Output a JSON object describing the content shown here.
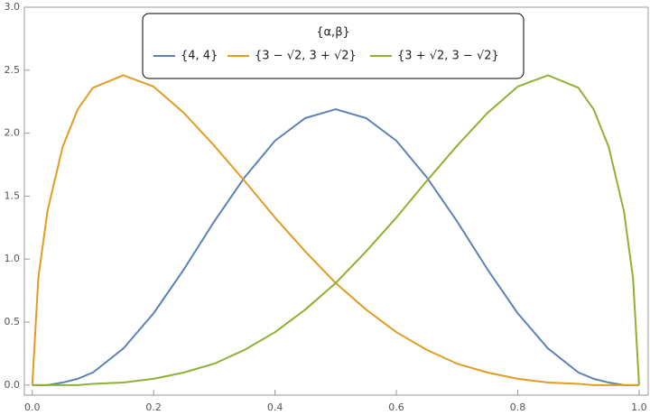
{
  "chart_data": {
    "type": "line",
    "legend_title": "{α,β}",
    "x": [
      0,
      0.01,
      0.025,
      0.05,
      0.075,
      0.1,
      0.15,
      0.2,
      0.25,
      0.3,
      0.35,
      0.4,
      0.45,
      0.5,
      0.55,
      0.6,
      0.65,
      0.7,
      0.75,
      0.8,
      0.85,
      0.9,
      0.925,
      0.95,
      0.975,
      0.99,
      1
    ],
    "series": [
      {
        "name": "{4, 4}",
        "color": "#5e81b5",
        "values": [
          0,
          0,
          0,
          0.02,
          0.05,
          0.1,
          0.29,
          0.57,
          0.92,
          1.3,
          1.65,
          1.94,
          2.12,
          2.19,
          2.12,
          1.94,
          1.65,
          1.3,
          0.92,
          0.57,
          0.29,
          0.1,
          0.05,
          0.02,
          0,
          0,
          0
        ]
      },
      {
        "name": "{3 − √2, 3 + √2}",
        "color": "#e19c24",
        "values": [
          0,
          0.85,
          1.38,
          1.89,
          2.19,
          2.36,
          2.46,
          2.37,
          2.16,
          1.9,
          1.62,
          1.33,
          1.06,
          0.81,
          0.6,
          0.42,
          0.28,
          0.17,
          0.1,
          0.05,
          0.02,
          0.01,
          0,
          0,
          0,
          0,
          0
        ]
      },
      {
        "name": "{3 + √2, 3 − √2}",
        "color": "#8fb032",
        "values": [
          0,
          0,
          0,
          0,
          0,
          0.01,
          0.02,
          0.05,
          0.1,
          0.17,
          0.28,
          0.42,
          0.6,
          0.81,
          1.06,
          1.33,
          1.62,
          1.9,
          2.16,
          2.37,
          2.46,
          2.36,
          2.19,
          1.89,
          1.38,
          0.85,
          0
        ]
      }
    ],
    "xlim": [
      -0.013,
      1.015
    ],
    "ylim": [
      -0.08,
      3.0
    ],
    "xticks": [
      {
        "value": 0,
        "label": "0.0"
      },
      {
        "value": 0.2,
        "label": "0.2"
      },
      {
        "value": 0.4,
        "label": "0.4"
      },
      {
        "value": 0.6,
        "label": "0.6"
      },
      {
        "value": 0.8,
        "label": "0.8"
      },
      {
        "value": 1,
        "label": "1.0"
      }
    ],
    "yticks": [
      {
        "value": 0,
        "label": "0.0"
      },
      {
        "value": 0.5,
        "label": "0.5"
      },
      {
        "value": 1,
        "label": "1.0"
      },
      {
        "value": 1.5,
        "label": "1.5"
      },
      {
        "value": 2,
        "label": "2.0"
      },
      {
        "value": 2.5,
        "label": "2.5"
      },
      {
        "value": 3,
        "label": "3.0"
      }
    ]
  }
}
